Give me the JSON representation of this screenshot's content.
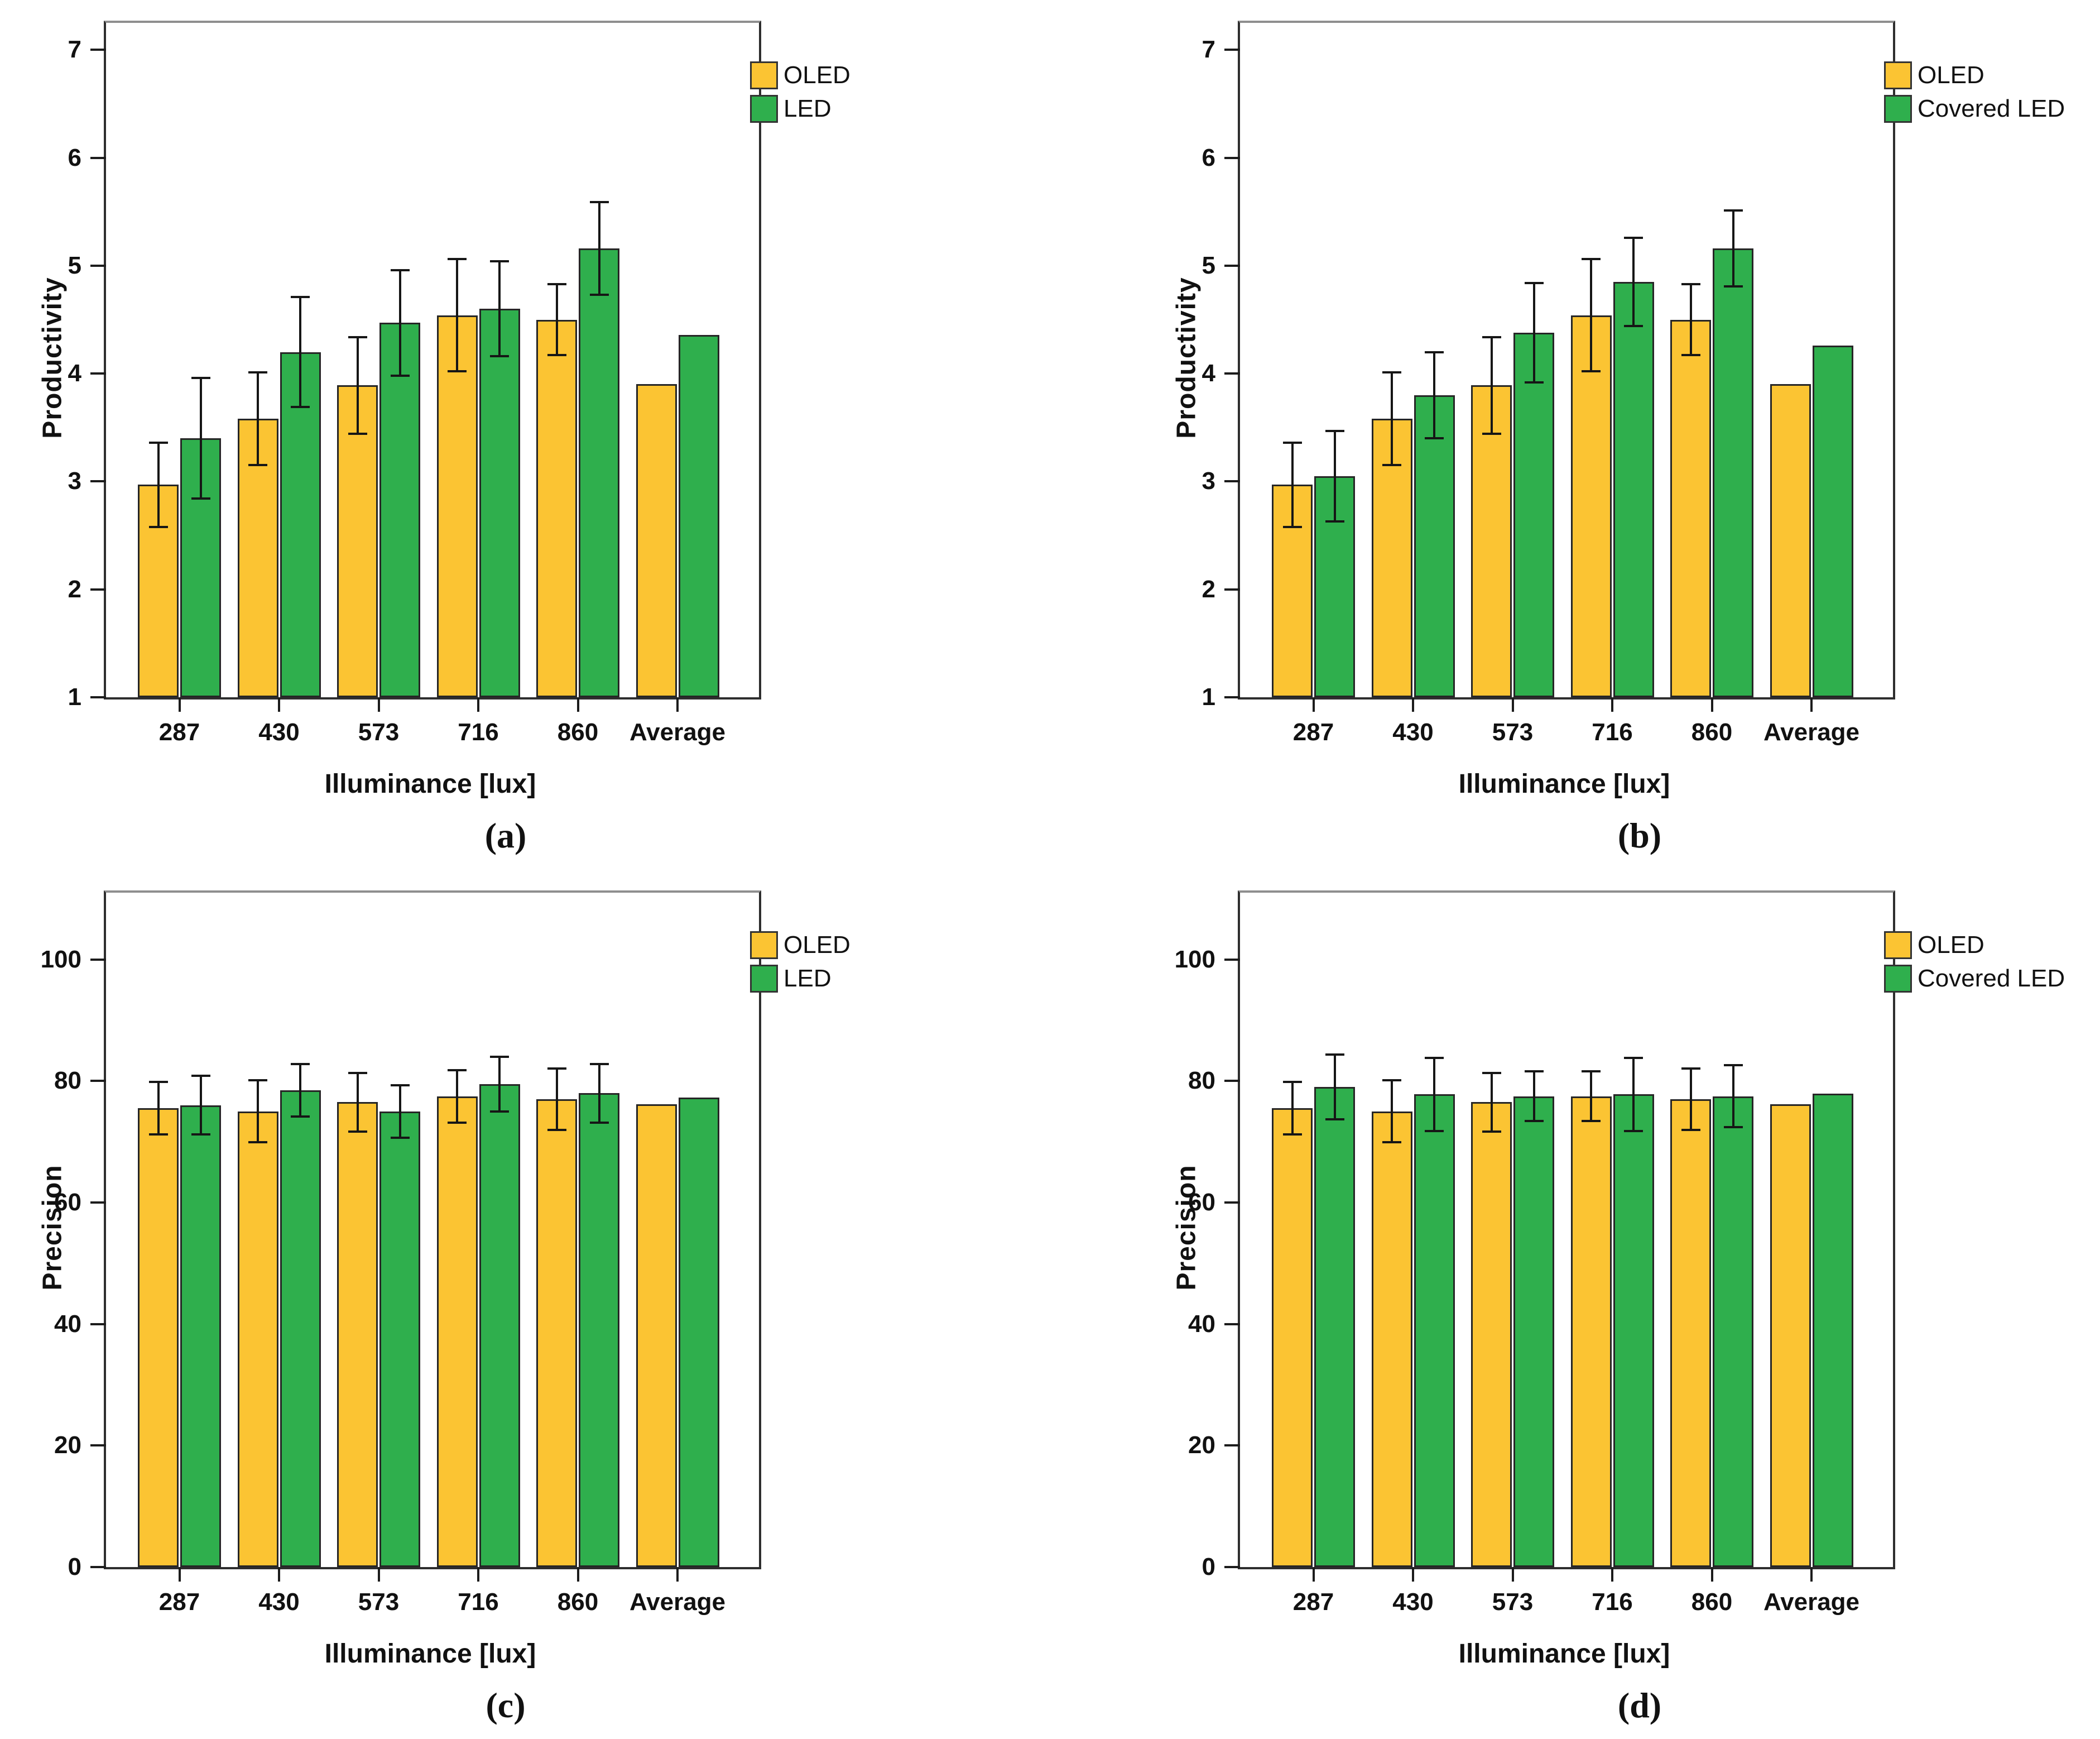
{
  "figure": {
    "background": "#ffffff",
    "accent_colors": {
      "oled_yellow": "#FBC433",
      "led_green": "#2FAF4D"
    }
  },
  "chart_data": [
    {
      "id": "a",
      "type": "bar",
      "title": "",
      "ylabel": "Productivity",
      "xlabel": "Illuminance [lux]",
      "caption": "(a)",
      "ylim": [
        1,
        7.25
      ],
      "yticks": [
        7,
        6,
        5,
        4,
        3,
        2,
        1
      ],
      "grid": false,
      "legend_position": "top-right-outside",
      "categories": [
        "287",
        "430",
        "573",
        "716",
        "860",
        "Average"
      ],
      "series": [
        {
          "name": "OLED",
          "color": "#FBC433",
          "values": [
            2.97,
            3.58,
            3.89,
            4.54,
            4.5,
            3.9
          ],
          "errors": [
            0.4,
            0.44,
            0.46,
            0.53,
            0.34,
            null
          ]
        },
        {
          "name": "LED",
          "color": "#2FAF4D",
          "values": [
            3.4,
            4.2,
            4.47,
            4.6,
            5.16,
            4.36
          ],
          "errors": [
            0.57,
            0.52,
            0.5,
            0.45,
            0.44,
            null
          ]
        }
      ]
    },
    {
      "id": "b",
      "type": "bar",
      "title": "",
      "ylabel": "Productivity",
      "xlabel": "Illuminance [lux]",
      "caption": "(b)",
      "ylim": [
        1,
        7.25
      ],
      "yticks": [
        7,
        6,
        5,
        4,
        3,
        2,
        1
      ],
      "grid": false,
      "legend_position": "top-right-outside",
      "categories": [
        "287",
        "430",
        "573",
        "716",
        "860",
        "Average"
      ],
      "series": [
        {
          "name": "OLED",
          "color": "#FBC433",
          "values": [
            2.97,
            3.58,
            3.89,
            4.54,
            4.5,
            3.9
          ],
          "errors": [
            0.4,
            0.44,
            0.46,
            0.53,
            0.34,
            null
          ]
        },
        {
          "name": "Covered LED",
          "color": "#2FAF4D",
          "values": [
            3.05,
            3.8,
            4.38,
            4.85,
            5.16,
            4.26
          ],
          "errors": [
            0.43,
            0.41,
            0.47,
            0.42,
            0.36,
            null
          ]
        }
      ]
    },
    {
      "id": "c",
      "type": "bar",
      "title": "",
      "ylabel": "Precision",
      "xlabel": "Illuminance [lux]",
      "caption": "(c)",
      "ylim": [
        0,
        111
      ],
      "yticks": [
        100,
        80,
        60,
        40,
        20,
        0
      ],
      "grid": false,
      "legend_position": "top-right-outside",
      "categories": [
        "287",
        "430",
        "573",
        "716",
        "860",
        "Average"
      ],
      "series": [
        {
          "name": "OLED",
          "color": "#FBC433",
          "values": [
            75.5,
            75.0,
            76.5,
            77.5,
            77.0,
            76.2
          ],
          "errors": [
            4.5,
            5.3,
            5.0,
            4.5,
            5.2,
            null
          ]
        },
        {
          "name": "LED",
          "color": "#2FAF4D",
          "values": [
            76.0,
            78.5,
            75.0,
            79.5,
            78.0,
            77.3
          ],
          "errors": [
            5.0,
            4.5,
            4.5,
            4.7,
            5.0,
            null
          ]
        }
      ]
    },
    {
      "id": "d",
      "type": "bar",
      "title": "",
      "ylabel": "Precision",
      "xlabel": "Illuminance [lux]",
      "caption": "(d)",
      "ylim": [
        0,
        111
      ],
      "yticks": [
        100,
        80,
        60,
        40,
        20,
        0
      ],
      "grid": false,
      "legend_position": "top-right-outside",
      "categories": [
        "287",
        "430",
        "573",
        "716",
        "860",
        "Average"
      ],
      "series": [
        {
          "name": "OLED",
          "color": "#FBC433",
          "values": [
            75.5,
            75.0,
            76.5,
            77.5,
            77.0,
            76.2
          ],
          "errors": [
            4.5,
            5.3,
            5.0,
            4.3,
            5.2,
            null
          ]
        },
        {
          "name": "Covered LED",
          "color": "#2FAF4D",
          "values": [
            79.0,
            77.8,
            77.5,
            77.8,
            77.5,
            77.9
          ],
          "errors": [
            5.5,
            6.2,
            4.3,
            6.2,
            5.3,
            null
          ]
        }
      ]
    }
  ]
}
